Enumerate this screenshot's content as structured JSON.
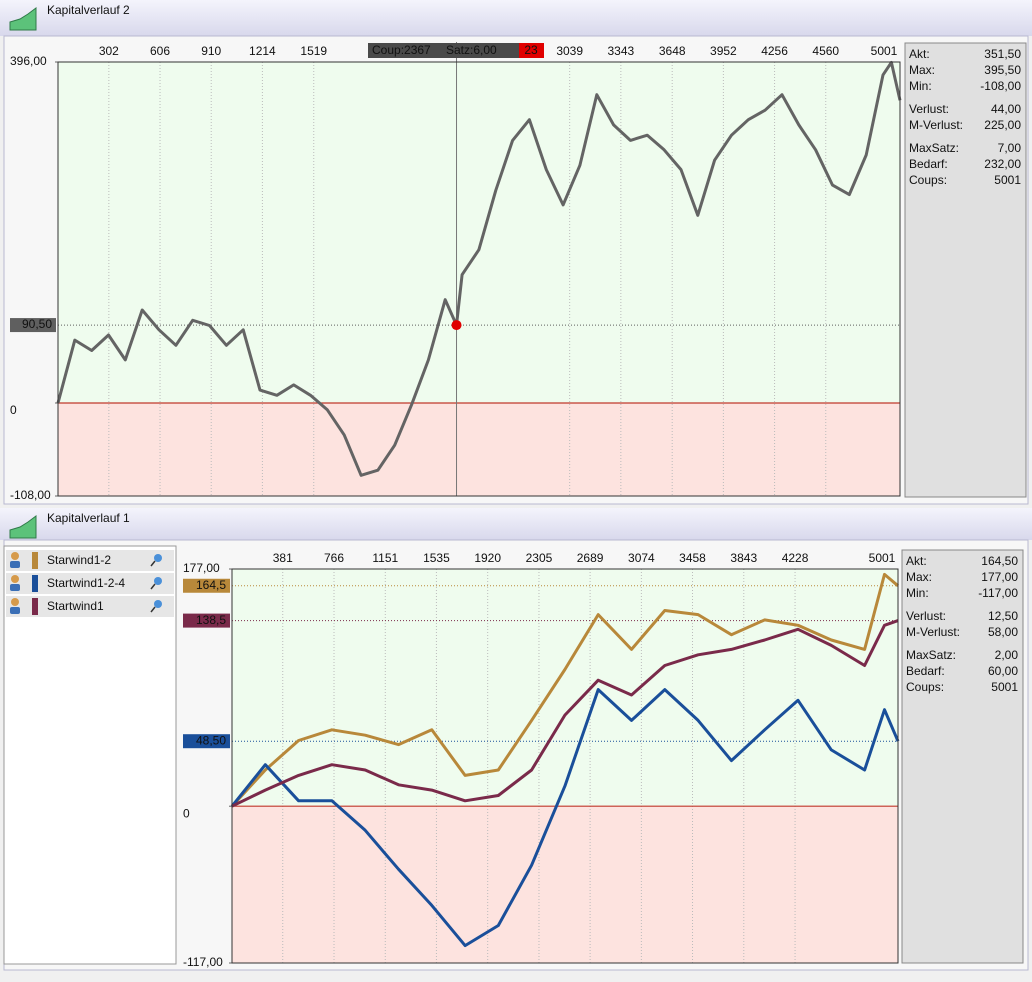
{
  "chart_data": [
    {
      "type": "line",
      "title": "Kapitalverlauf 2",
      "color": "#646464",
      "xlim": [
        0,
        5001
      ],
      "ylim": [
        -108,
        396
      ],
      "xticks": [
        302,
        606,
        910,
        1214,
        1519,
        3039,
        3343,
        3648,
        3952,
        4256,
        4560,
        5001
      ],
      "yticks": [
        {
          "value": 396,
          "label": "396,00"
        },
        0,
        {
          "value": -108,
          "label": "-108,00"
        }
      ],
      "x": [
        0,
        100,
        200,
        300,
        400,
        500,
        600,
        700,
        800,
        900,
        1000,
        1100,
        1200,
        1300,
        1400,
        1500,
        1600,
        1700,
        1800,
        1900,
        2000,
        2100,
        2200,
        2300,
        2367,
        2400,
        2500,
        2600,
        2700,
        2800,
        2900,
        3000,
        3100,
        3200,
        3300,
        3400,
        3500,
        3600,
        3700,
        3800,
        3900,
        4000,
        4100,
        4200,
        4300,
        4400,
        4500,
        4600,
        4700,
        4800,
        4900,
        4950,
        5001
      ],
      "values": [
        0,
        73,
        61,
        79,
        50,
        108,
        85,
        67,
        96,
        90,
        67,
        85,
        15,
        9,
        21,
        9,
        -8,
        -37,
        -84,
        -78,
        -49,
        -2,
        50,
        120,
        90.5,
        149,
        178,
        247,
        305,
        329,
        271,
        230,
        276,
        358,
        323,
        305,
        311,
        294,
        271,
        218,
        282,
        311,
        329,
        340,
        358,
        323,
        294,
        253,
        242,
        288,
        381,
        395.5,
        351.5
      ],
      "markers": [
        {
          "value": 90.5,
          "label": "90,50",
          "color": "#5f5f5f"
        }
      ],
      "crosshair": {
        "x": 2367
      },
      "overlay": {
        "coup": "Coup:2367",
        "satz": "Satz:6,00",
        "number": "23"
      },
      "stats": [
        {
          "label": "Akt:",
          "value": "351,50"
        },
        {
          "label": "Max:",
          "value": "395,50"
        },
        {
          "label": "Min:",
          "value": "-108,00"
        },
        {
          "label": "Verlust:",
          "value": "44,00"
        },
        {
          "label": "M-Verlust:",
          "value": "225,00"
        },
        {
          "label": "MaxSatz:",
          "value": "7,00"
        },
        {
          "label": "Bedarf:",
          "value": "232,00"
        },
        {
          "label": "Coups:",
          "value": "5001"
        }
      ]
    },
    {
      "type": "line",
      "title": "Kapitalverlauf 1",
      "xlim": [
        0,
        5001
      ],
      "ylim": [
        -117,
        177
      ],
      "xticks": [
        381,
        766,
        1151,
        1535,
        1920,
        2305,
        2689,
        3074,
        3458,
        3843,
        4228,
        5001
      ],
      "yticks": [
        {
          "value": 177,
          "label": "177,00"
        },
        0,
        {
          "value": -117,
          "label": "-117,00"
        }
      ],
      "x": [
        0,
        250,
        500,
        750,
        1000,
        1250,
        1500,
        1750,
        2000,
        2250,
        2500,
        2750,
        3000,
        3250,
        3500,
        3750,
        4000,
        4250,
        4500,
        4750,
        4900,
        5001
      ],
      "series": [
        {
          "name": "Starwind1-2",
          "color": "#b8883a",
          "values": [
            0,
            27,
            49,
            57,
            53,
            46,
            57,
            23,
            27,
            64,
            102,
            143,
            117,
            146,
            143,
            128,
            139,
            135,
            124,
            117,
            173,
            164.5
          ]
        },
        {
          "name": "Startwind1-2-4",
          "color": "#1a4f9a",
          "values": [
            0,
            31,
            4,
            4,
            -18,
            -47,
            -74,
            -104,
            -89,
            -44,
            15,
            87,
            64,
            87,
            64,
            34,
            57,
            79,
            42,
            27,
            72,
            48.5
          ]
        },
        {
          "name": "Startwind1",
          "color": "#7a2a4a",
          "values": [
            0,
            12,
            23,
            31,
            27,
            16,
            12,
            4,
            8,
            27,
            68,
            94,
            83,
            105,
            113,
            117,
            124,
            132,
            120,
            105,
            135,
            138.5
          ]
        }
      ],
      "markers": [
        {
          "value": 164.5,
          "label": "164,5",
          "color": "#b8883a"
        },
        {
          "value": 138.5,
          "label": "138,5",
          "color": "#7a2a4a"
        },
        {
          "value": 48.5,
          "label": "48,50",
          "color": "#1a4f9a"
        }
      ],
      "stats": [
        {
          "label": "Akt:",
          "value": "164,50"
        },
        {
          "label": "Max:",
          "value": "177,00"
        },
        {
          "label": "Min:",
          "value": "-117,00"
        },
        {
          "label": "Verlust:",
          "value": "12,50"
        },
        {
          "label": "M-Verlust:",
          "value": "58,00"
        },
        {
          "label": "MaxSatz:",
          "value": "2,00"
        },
        {
          "label": "Bedarf:",
          "value": "60,00"
        },
        {
          "label": "Coups:",
          "value": "5001"
        }
      ]
    }
  ]
}
